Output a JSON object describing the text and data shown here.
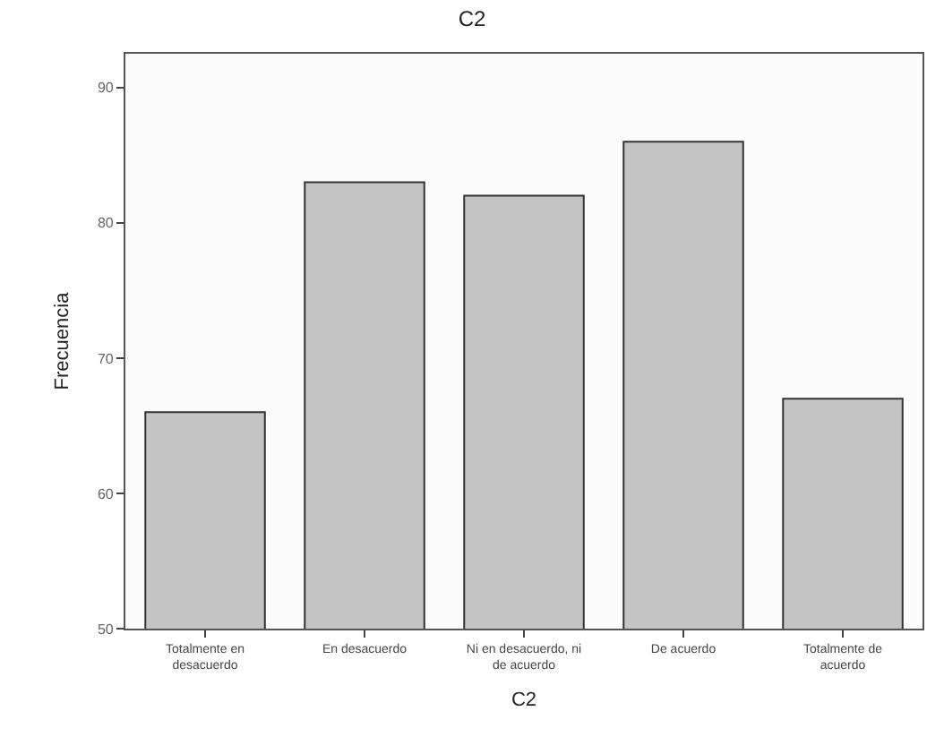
{
  "chart_data": {
    "type": "bar",
    "title": "C2",
    "xlabel": "C2",
    "ylabel": "Frecuencia",
    "categories": [
      "Totalmente en\ndesacuerdo",
      "En desacuerdo",
      "Ni en desacuerdo, ni\nde acuerdo",
      "De acuerdo",
      "Totalmente de\nacuerdo"
    ],
    "values": [
      66,
      83,
      82,
      86,
      67
    ],
    "color": "#c4c4c4",
    "ylim": [
      50,
      92.5
    ],
    "yticks": [
      50,
      60,
      70,
      80,
      90
    ],
    "grid": false,
    "legend": false
  }
}
